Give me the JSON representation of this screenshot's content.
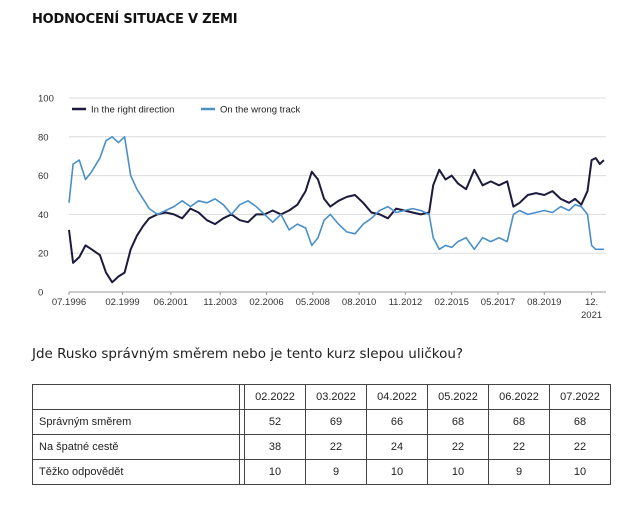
{
  "title": "HODNOCENÍ SITUACE V ZEMI",
  "question": "Jde Rusko správným směrem nebo je tento kurz slepou uličkou?",
  "chart_data": {
    "type": "line",
    "ylim": [
      0,
      100
    ],
    "yticks": [
      "0",
      "20",
      "40",
      "60",
      "80",
      "100"
    ],
    "xlim": [
      1996.5,
      2022.6
    ],
    "xticks": [
      {
        "label": "07.1996",
        "x": 1996.5
      },
      {
        "label": "02.1999",
        "x": 1999.1
      },
      {
        "label": "06.2001",
        "x": 2001.45
      },
      {
        "label": "11.2003",
        "x": 2003.85
      },
      {
        "label": "02.2006",
        "x": 2006.1
      },
      {
        "label": "05.2008",
        "x": 2008.35
      },
      {
        "label": "08.2010",
        "x": 2010.6
      },
      {
        "label": "11.2012",
        "x": 2012.85
      },
      {
        "label": "02.2015",
        "x": 2015.1
      },
      {
        "label": "05.2017",
        "x": 2017.35
      },
      {
        "label": "08.2019",
        "x": 2019.6
      },
      {
        "label": "12.",
        "label2": "2021",
        "x": 2021.9
      }
    ],
    "grid": "horizontal",
    "legend_position": "top-left",
    "series": [
      {
        "name": "In the right direction",
        "color": "#1c1b3e",
        "points": [
          [
            1996.5,
            32
          ],
          [
            1996.7,
            15
          ],
          [
            1997.0,
            18
          ],
          [
            1997.3,
            24
          ],
          [
            1997.6,
            22
          ],
          [
            1998.0,
            19
          ],
          [
            1998.3,
            10
          ],
          [
            1998.6,
            5
          ],
          [
            1998.9,
            8
          ],
          [
            1999.2,
            10
          ],
          [
            1999.5,
            22
          ],
          [
            1999.8,
            29
          ],
          [
            2000.1,
            34
          ],
          [
            2000.4,
            38
          ],
          [
            2000.8,
            40
          ],
          [
            2001.2,
            41
          ],
          [
            2001.6,
            40
          ],
          [
            2002.0,
            38
          ],
          [
            2002.4,
            43
          ],
          [
            2002.8,
            41
          ],
          [
            2003.2,
            37
          ],
          [
            2003.6,
            35
          ],
          [
            2004.0,
            38
          ],
          [
            2004.4,
            40
          ],
          [
            2004.8,
            37
          ],
          [
            2005.2,
            36
          ],
          [
            2005.6,
            40
          ],
          [
            2006.0,
            40
          ],
          [
            2006.4,
            42
          ],
          [
            2006.8,
            40
          ],
          [
            2007.2,
            42
          ],
          [
            2007.6,
            45
          ],
          [
            2008.0,
            52
          ],
          [
            2008.3,
            62
          ],
          [
            2008.6,
            58
          ],
          [
            2008.9,
            48
          ],
          [
            2009.2,
            44
          ],
          [
            2009.6,
            47
          ],
          [
            2010.0,
            49
          ],
          [
            2010.4,
            50
          ],
          [
            2010.8,
            46
          ],
          [
            2011.2,
            41
          ],
          [
            2011.6,
            40
          ],
          [
            2012.0,
            38
          ],
          [
            2012.4,
            43
          ],
          [
            2012.8,
            42
          ],
          [
            2013.2,
            41
          ],
          [
            2013.6,
            40
          ],
          [
            2014.0,
            41
          ],
          [
            2014.2,
            55
          ],
          [
            2014.5,
            63
          ],
          [
            2014.8,
            58
          ],
          [
            2015.1,
            60
          ],
          [
            2015.4,
            56
          ],
          [
            2015.8,
            53
          ],
          [
            2016.2,
            63
          ],
          [
            2016.6,
            55
          ],
          [
            2017.0,
            57
          ],
          [
            2017.4,
            55
          ],
          [
            2017.8,
            57
          ],
          [
            2018.1,
            44
          ],
          [
            2018.4,
            46
          ],
          [
            2018.8,
            50
          ],
          [
            2019.2,
            51
          ],
          [
            2019.6,
            50
          ],
          [
            2020.0,
            52
          ],
          [
            2020.4,
            48
          ],
          [
            2020.8,
            46
          ],
          [
            2021.1,
            48
          ],
          [
            2021.4,
            45
          ],
          [
            2021.7,
            52
          ],
          [
            2021.9,
            68
          ],
          [
            2022.1,
            69
          ],
          [
            2022.3,
            66
          ],
          [
            2022.5,
            68
          ]
        ]
      },
      {
        "name": "On the wrong track",
        "color": "#4a8fc9",
        "points": [
          [
            1996.5,
            46
          ],
          [
            1996.7,
            66
          ],
          [
            1997.0,
            68
          ],
          [
            1997.3,
            58
          ],
          [
            1997.6,
            62
          ],
          [
            1998.0,
            69
          ],
          [
            1998.3,
            78
          ],
          [
            1998.6,
            80
          ],
          [
            1998.9,
            77
          ],
          [
            1999.2,
            80
          ],
          [
            1999.5,
            60
          ],
          [
            1999.8,
            53
          ],
          [
            2000.1,
            48
          ],
          [
            2000.4,
            43
          ],
          [
            2000.8,
            40
          ],
          [
            2001.2,
            42
          ],
          [
            2001.6,
            44
          ],
          [
            2002.0,
            47
          ],
          [
            2002.4,
            44
          ],
          [
            2002.8,
            47
          ],
          [
            2003.2,
            46
          ],
          [
            2003.6,
            48
          ],
          [
            2004.0,
            45
          ],
          [
            2004.4,
            40
          ],
          [
            2004.8,
            45
          ],
          [
            2005.2,
            47
          ],
          [
            2005.6,
            44
          ],
          [
            2006.0,
            40
          ],
          [
            2006.4,
            36
          ],
          [
            2006.8,
            40
          ],
          [
            2007.2,
            32
          ],
          [
            2007.6,
            35
          ],
          [
            2008.0,
            33
          ],
          [
            2008.3,
            24
          ],
          [
            2008.6,
            28
          ],
          [
            2008.9,
            37
          ],
          [
            2009.2,
            40
          ],
          [
            2009.6,
            35
          ],
          [
            2010.0,
            31
          ],
          [
            2010.4,
            30
          ],
          [
            2010.8,
            35
          ],
          [
            2011.2,
            38
          ],
          [
            2011.6,
            42
          ],
          [
            2012.0,
            44
          ],
          [
            2012.4,
            41
          ],
          [
            2012.8,
            42
          ],
          [
            2013.2,
            43
          ],
          [
            2013.6,
            42
          ],
          [
            2014.0,
            40
          ],
          [
            2014.2,
            28
          ],
          [
            2014.5,
            22
          ],
          [
            2014.8,
            24
          ],
          [
            2015.1,
            23
          ],
          [
            2015.4,
            26
          ],
          [
            2015.8,
            28
          ],
          [
            2016.2,
            22
          ],
          [
            2016.6,
            28
          ],
          [
            2017.0,
            26
          ],
          [
            2017.4,
            28
          ],
          [
            2017.8,
            26
          ],
          [
            2018.1,
            40
          ],
          [
            2018.4,
            42
          ],
          [
            2018.8,
            40
          ],
          [
            2019.2,
            41
          ],
          [
            2019.6,
            42
          ],
          [
            2020.0,
            41
          ],
          [
            2020.4,
            44
          ],
          [
            2020.8,
            42
          ],
          [
            2021.1,
            45
          ],
          [
            2021.4,
            44
          ],
          [
            2021.7,
            40
          ],
          [
            2021.9,
            24
          ],
          [
            2022.1,
            22
          ],
          [
            2022.3,
            22
          ],
          [
            2022.5,
            22
          ]
        ]
      }
    ]
  },
  "table": {
    "headers": [
      "02.2022",
      "03.2022",
      "04.2022",
      "05.2022",
      "06.2022",
      "07.2022"
    ],
    "rows": [
      {
        "label": "Správným směrem",
        "values": [
          "52",
          "69",
          "66",
          "68",
          "68",
          "68"
        ]
      },
      {
        "label": "Na špatné cestě",
        "values": [
          "38",
          "22",
          "24",
          "22",
          "22",
          "22"
        ]
      },
      {
        "label": "Těžko odpovědět",
        "values": [
          "10",
          "9",
          "10",
          "10",
          "9",
          "10"
        ]
      }
    ]
  }
}
